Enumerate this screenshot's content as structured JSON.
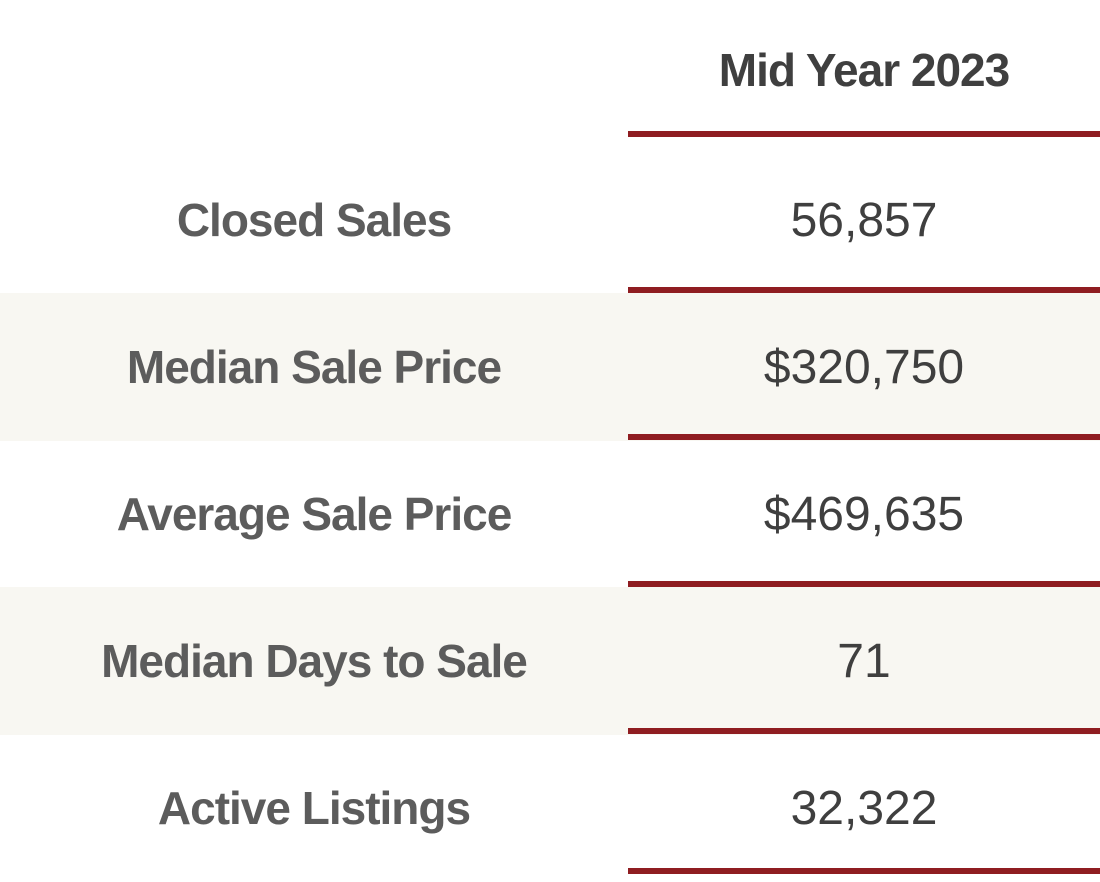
{
  "chart_data": {
    "type": "table",
    "column_header": "Mid Year 2023",
    "rows": [
      {
        "label": "Closed Sales",
        "value": "56,857"
      },
      {
        "label": "Median Sale Price",
        "value": "$320,750"
      },
      {
        "label": "Average Sale Price",
        "value": "$469,635"
      },
      {
        "label": "Median Days to Sale",
        "value": "71"
      },
      {
        "label": "Active Listings",
        "value": "32,322"
      }
    ]
  },
  "colors": {
    "rule": "#8f1d21",
    "shaded_row": "#f8f7f2",
    "label_text": "#5c5c5c",
    "value_text": "#3f3f3f"
  }
}
